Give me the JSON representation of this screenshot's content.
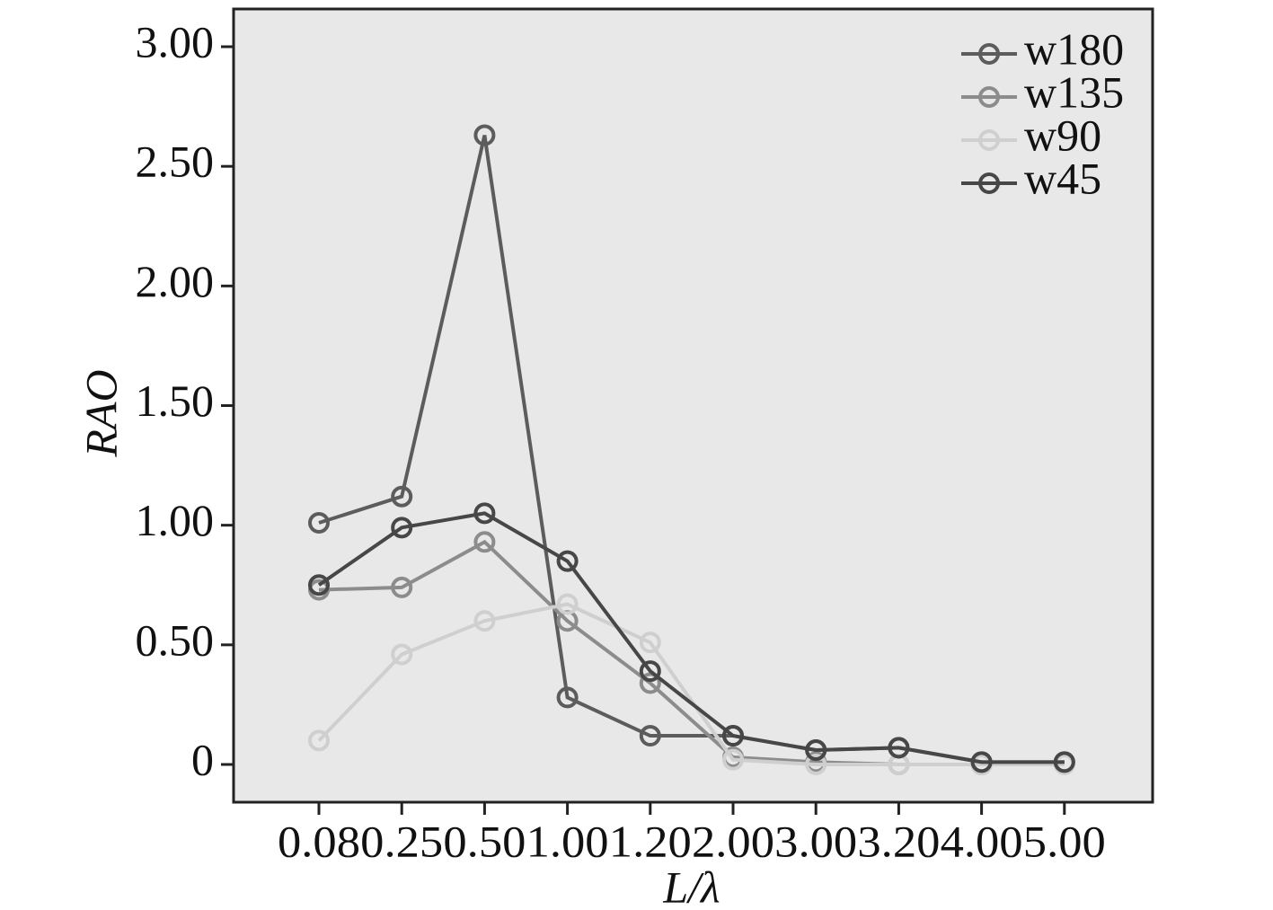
{
  "chart_data": {
    "type": "line",
    "x_label": "L/λ",
    "y_label": "RAO",
    "categories": [
      "0.08",
      "0.25",
      "0.50",
      "1.00",
      "1.20",
      "2.00",
      "3.00",
      "3.20",
      "4.00",
      "5.00"
    ],
    "ylim": [
      0,
      3
    ],
    "yticks": [
      0,
      {
        "value": 0.5,
        "label": "0.50"
      },
      {
        "value": 1,
        "label": "1.00"
      },
      {
        "value": 1.5,
        "label": "1.50"
      },
      {
        "value": 2,
        "label": "2.00"
      },
      {
        "value": 2.5,
        "label": "2.50"
      },
      {
        "value": 3,
        "label": "3.00"
      }
    ],
    "legend_position": "upper right",
    "series": [
      {
        "name": "w180",
        "color": "#5c5c5c",
        "values": [
          1.01,
          1.12,
          2.63,
          0.28,
          0.12,
          0.12,
          0.06,
          0.07,
          0.01,
          0.01
        ]
      },
      {
        "name": "w135",
        "color": "#8c8c8c",
        "values": [
          0.73,
          0.74,
          0.93,
          0.6,
          0.34,
          0.03,
          0.01,
          0,
          0,
          0.01
        ]
      },
      {
        "name": "w90",
        "color": "#cfcfcf",
        "values": [
          0.1,
          0.46,
          0.6,
          0.67,
          0.51,
          0.02,
          0,
          0,
          0,
          0
        ]
      },
      {
        "name": "w45",
        "color": "#474747",
        "values": [
          0.75,
          0.99,
          1.05,
          0.85,
          0.39,
          0.12,
          0.06,
          0.07,
          0.01,
          0.01
        ]
      }
    ]
  }
}
